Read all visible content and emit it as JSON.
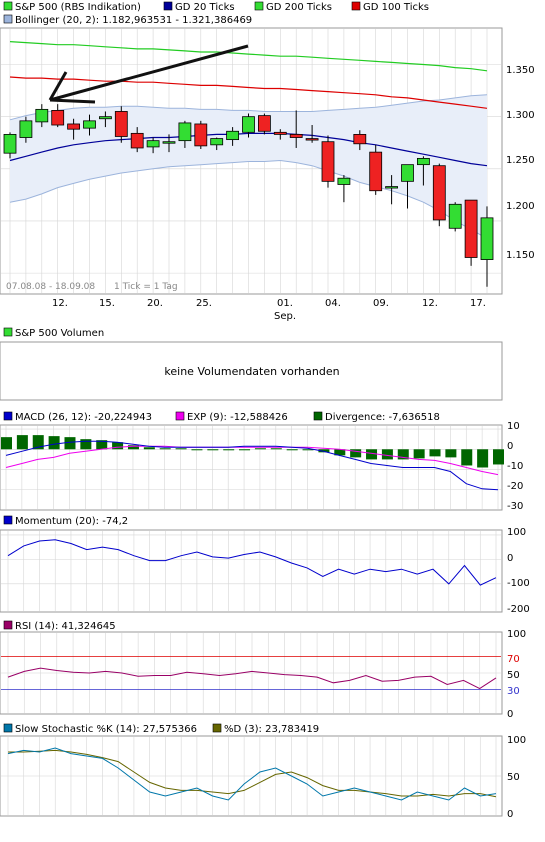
{
  "colors": {
    "up": "#33dd33",
    "down": "#ee2222",
    "frame": "#9a9a9a",
    "grid": "#d6d6d6",
    "gd20": "#000099",
    "gd200": "#22cc22",
    "gd100": "#dd0000",
    "boll_fill": "#e8eef9",
    "boll_line": "#9cb4dc",
    "macd": "#0000cc",
    "exp": "#ee00ee",
    "div": "#006600",
    "mom": "#0000cc",
    "rsi": "#990066",
    "rsi70": "#dd0000",
    "rsi30": "#3333cc",
    "stoch_k": "#0077aa",
    "stoch_d": "#666600",
    "arrow": "#111111"
  },
  "price_panel": {
    "legend": [
      "S&P 500 (RBS Indikation)",
      "GD 20 Ticks",
      "GD 200 Ticks",
      "GD 100 Ticks"
    ],
    "bollinger": "Bollinger (20, 2): 1.182,963531 - 1.321,386469",
    "period": "07.08.08 - 18.09.08",
    "tick_note": "1 Tick = 1 Tag",
    "y_labels": [
      "1.350",
      "1.300",
      "1.250",
      "1.200",
      "1.150"
    ],
    "x_labels": [
      "12.",
      "15.",
      "20.",
      "25.",
      "01.",
      "04.",
      "09.",
      "12.",
      "17."
    ],
    "month_label": "Sep."
  },
  "volume_panel": {
    "title": "S&P 500 Volumen",
    "message": "keine Volumendaten vorhanden"
  },
  "macd_panel": {
    "macd": "MACD (26, 12): -20,224943",
    "exp": "EXP (9): -12,588426",
    "div": "Divergence: -7,636518",
    "y_labels": [
      "10",
      "0",
      "-10",
      "-20",
      "-30"
    ]
  },
  "momentum_panel": {
    "title": "Momentum (20): -74,2",
    "y_labels": [
      "100",
      "0",
      "-100",
      "-200"
    ]
  },
  "rsi_panel": {
    "title": "RSI (14): 41,324645",
    "y_labels": [
      "100",
      "70",
      "50",
      "30",
      "0"
    ]
  },
  "stoch_panel": {
    "k": "Slow Stochastic %K (14): 27,575366",
    "d": "%D (3): 23,783419",
    "y_labels": [
      "100",
      "50",
      "0"
    ]
  },
  "chart_data": [
    {
      "type": "candlestick",
      "title": "S&P 500 (RBS Indikation)",
      "ylim": [
        1130,
        1385
      ],
      "x_tick_positions": [
        3,
        5,
        8,
        11,
        15,
        18,
        21,
        24,
        27
      ],
      "candles": [
        {
          "o": 1265,
          "h": 1285,
          "l": 1260,
          "c": 1283
        },
        {
          "o": 1280,
          "h": 1300,
          "l": 1275,
          "c": 1296
        },
        {
          "o": 1295,
          "h": 1312,
          "l": 1290,
          "c": 1307
        },
        {
          "o": 1306,
          "h": 1312,
          "l": 1290,
          "c": 1292
        },
        {
          "o": 1293,
          "h": 1298,
          "l": 1278,
          "c": 1288
        },
        {
          "o": 1289,
          "h": 1302,
          "l": 1282,
          "c": 1296
        },
        {
          "o": 1298,
          "h": 1305,
          "l": 1290,
          "c": 1300
        },
        {
          "o": 1305,
          "h": 1310,
          "l": 1275,
          "c": 1281
        },
        {
          "o": 1284,
          "h": 1290,
          "l": 1266,
          "c": 1270
        },
        {
          "o": 1271,
          "h": 1280,
          "l": 1265,
          "c": 1277
        },
        {
          "o": 1275,
          "h": 1283,
          "l": 1266,
          "c": 1276
        },
        {
          "o": 1277,
          "h": 1296,
          "l": 1270,
          "c": 1294
        },
        {
          "o": 1293,
          "h": 1296,
          "l": 1269,
          "c": 1272
        },
        {
          "o": 1273,
          "h": 1280,
          "l": 1268,
          "c": 1279
        },
        {
          "o": 1278,
          "h": 1290,
          "l": 1272,
          "c": 1286
        },
        {
          "o": 1285,
          "h": 1303,
          "l": 1280,
          "c": 1300
        },
        {
          "o": 1301,
          "h": 1303,
          "l": 1283,
          "c": 1286
        },
        {
          "o": 1285,
          "h": 1288,
          "l": 1278,
          "c": 1283
        },
        {
          "o": 1283,
          "h": 1306,
          "l": 1270,
          "c": 1280
        },
        {
          "o": 1279,
          "h": 1292,
          "l": 1275,
          "c": 1278
        },
        {
          "o": 1276,
          "h": 1282,
          "l": 1232,
          "c": 1238
        },
        {
          "o": 1235,
          "h": 1244,
          "l": 1218,
          "c": 1241
        },
        {
          "o": 1283,
          "h": 1287,
          "l": 1268,
          "c": 1274
        },
        {
          "o": 1266,
          "h": 1273,
          "l": 1225,
          "c": 1229
        },
        {
          "o": 1233,
          "h": 1244,
          "l": 1216,
          "c": 1233
        },
        {
          "o": 1238,
          "h": 1252,
          "l": 1212,
          "c": 1254
        },
        {
          "o": 1254,
          "h": 1262,
          "l": 1234,
          "c": 1260
        },
        {
          "o": 1253,
          "h": 1255,
          "l": 1195,
          "c": 1201
        },
        {
          "o": 1193,
          "h": 1218,
          "l": 1190,
          "c": 1216
        },
        {
          "o": 1220,
          "h": 1220,
          "l": 1157,
          "c": 1165
        },
        {
          "o": 1163,
          "h": 1214,
          "l": 1137,
          "c": 1203
        }
      ],
      "series": [
        {
          "name": "GD 20 Ticks",
          "values": [
            1258,
            1262,
            1266,
            1270,
            1273,
            1275,
            1277,
            1278,
            1279,
            1280,
            1280,
            1281,
            1282,
            1283,
            1283,
            1284,
            1284,
            1284,
            1283,
            1282,
            1280,
            1278,
            1275,
            1273,
            1270,
            1267,
            1264,
            1261,
            1258,
            1255,
            1253
          ]
        },
        {
          "name": "GD 200 Ticks",
          "values": [
            1372,
            1371,
            1370,
            1369,
            1369,
            1368,
            1367,
            1366,
            1365,
            1365,
            1364,
            1363,
            1362,
            1362,
            1361,
            1360,
            1359,
            1358,
            1358,
            1357,
            1356,
            1355,
            1354,
            1353,
            1352,
            1351,
            1350,
            1349,
            1347,
            1346,
            1344
          ]
        },
        {
          "name": "GD 100 Ticks",
          "values": [
            1338,
            1337,
            1337,
            1336,
            1336,
            1335,
            1334,
            1334,
            1333,
            1333,
            1332,
            1331,
            1330,
            1330,
            1329,
            1328,
            1327,
            1327,
            1326,
            1325,
            1324,
            1323,
            1322,
            1321,
            1319,
            1318,
            1316,
            1314,
            1312,
            1310,
            1308
          ]
        },
        {
          "name": "Bollinger upper",
          "values": [
            1297,
            1301,
            1304,
            1306,
            1308,
            1309,
            1309,
            1310,
            1310,
            1309,
            1308,
            1308,
            1307,
            1307,
            1306,
            1306,
            1305,
            1305,
            1305,
            1305,
            1306,
            1307,
            1308,
            1309,
            1311,
            1313,
            1315,
            1316,
            1318,
            1320,
            1321
          ]
        },
        {
          "name": "Bollinger lower",
          "values": [
            1218,
            1221,
            1226,
            1232,
            1236,
            1240,
            1243,
            1246,
            1248,
            1250,
            1252,
            1253,
            1254,
            1255,
            1256,
            1257,
            1257,
            1258,
            1256,
            1253,
            1248,
            1243,
            1237,
            1233,
            1229,
            1224,
            1218,
            1210,
            1200,
            1192,
            1183
          ]
        }
      ]
    },
    {
      "type": "line+bar",
      "title": "MACD",
      "ylim": [
        -30,
        12
      ],
      "series": [
        {
          "name": "MACD (26, 12)",
          "values": [
            -3,
            -1,
            1,
            2.5,
            3.5,
            4,
            4,
            3.5,
            2.5,
            1.5,
            1,
            1,
            1,
            1,
            1,
            1.5,
            1.5,
            1.5,
            1,
            0.5,
            -1,
            -3,
            -5,
            -7,
            -8,
            -9,
            -9,
            -9,
            -11,
            -17,
            -19.5,
            -20
          ]
        },
        {
          "name": "EXP (9)",
          "values": [
            -9,
            -7,
            -5,
            -4,
            -2,
            -1,
            0,
            1,
            1.5,
            1.5,
            1.5,
            1,
            1,
            1,
            1,
            1,
            1,
            1,
            1,
            1,
            0.5,
            0,
            -1,
            -2,
            -3,
            -4,
            -5,
            -5.5,
            -7,
            -9,
            -11,
            -12.5
          ]
        },
        {
          "name": "Divergence",
          "values": [
            6,
            7,
            7,
            6.5,
            6,
            5,
            4.5,
            3.5,
            2,
            1,
            0.5,
            0.5,
            0,
            -0.5,
            -0.5,
            0,
            0.5,
            0.5,
            0,
            -0.5,
            -1.5,
            -3,
            -4,
            -5,
            -5,
            -5,
            -4.5,
            -3.5,
            -4,
            -8,
            -9,
            -7.5
          ]
        }
      ]
    },
    {
      "type": "line",
      "title": "Momentum (20)",
      "ylim": [
        -215,
        120
      ],
      "series": [
        {
          "name": "Momentum (20)",
          "values": [
            15,
            55,
            75,
            80,
            65,
            40,
            50,
            40,
            15,
            -5,
            -5,
            15,
            30,
            10,
            5,
            20,
            30,
            10,
            -15,
            -35,
            -70,
            -40,
            -60,
            -40,
            -50,
            -40,
            -60,
            -40,
            -100,
            -25,
            -105,
            -75
          ]
        }
      ]
    },
    {
      "type": "line",
      "title": "RSI (14)",
      "ylim": [
        0,
        100
      ],
      "series": [
        {
          "name": "RSI (14)",
          "values": [
            45,
            52,
            56,
            53,
            51,
            50,
            52,
            50,
            46,
            47,
            47,
            51,
            49,
            47,
            49,
            52,
            50,
            48,
            47,
            45,
            38,
            41,
            47,
            40,
            41,
            45,
            46,
            36,
            41,
            31,
            44
          ]
        }
      ]
    },
    {
      "type": "line",
      "title": "Slow Stochastic",
      "ylim": [
        0,
        100
      ],
      "series": [
        {
          "name": "Slow Stochastic %K (14)",
          "values": [
            78,
            82,
            80,
            85,
            78,
            75,
            72,
            60,
            45,
            30,
            25,
            30,
            35,
            25,
            20,
            40,
            55,
            60,
            50,
            40,
            25,
            30,
            35,
            30,
            25,
            20,
            30,
            25,
            20,
            35,
            25,
            28
          ]
        },
        {
          "name": "%D (3)",
          "values": [
            80,
            80,
            81,
            82,
            80,
            77,
            73,
            68,
            55,
            42,
            35,
            32,
            32,
            30,
            28,
            32,
            42,
            52,
            55,
            48,
            38,
            32,
            32,
            30,
            28,
            25,
            25,
            27,
            25,
            28,
            28,
            24
          ]
        }
      ]
    }
  ]
}
